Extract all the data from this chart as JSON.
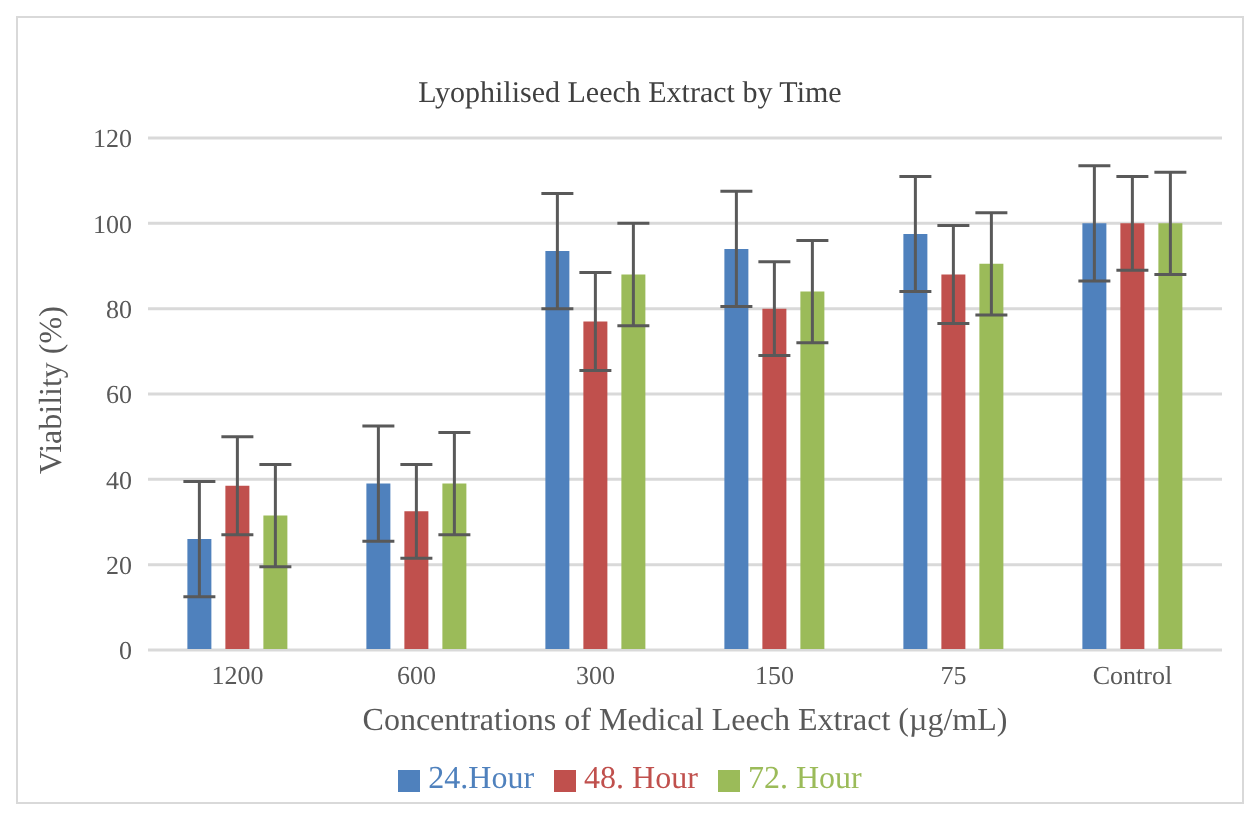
{
  "chart_data": {
    "type": "bar",
    "title": "Lyophilised Leech Extract by Time",
    "xlabel": "Concentrations of Medical Leech Extract (µg/mL)",
    "ylabel": "Viability (%)",
    "categories": [
      "1200",
      "600",
      "300",
      "150",
      "75",
      "Control"
    ],
    "series": [
      {
        "name": "24.Hour",
        "color": "#4f81bd",
        "values": [
          26,
          39,
          93.5,
          94,
          97.5,
          100
        ],
        "errors": [
          13.5,
          13.5,
          13.5,
          13.5,
          13.5,
          13.5
        ]
      },
      {
        "name": "48. Hour",
        "color": "#c0504d",
        "values": [
          38.5,
          32.5,
          77,
          80,
          88,
          100
        ],
        "errors": [
          11.5,
          11,
          11.5,
          11,
          11.5,
          11
        ]
      },
      {
        "name": "72. Hour",
        "color": "#9bbb59",
        "values": [
          31.5,
          39,
          88,
          84,
          90.5,
          100
        ],
        "errors": [
          12,
          12,
          12,
          12,
          12,
          12
        ]
      }
    ],
    "ylim": [
      0,
      120
    ],
    "yticks": [
      0,
      20,
      40,
      60,
      80,
      100,
      120
    ],
    "grid": "y",
    "legend": "bottom"
  }
}
